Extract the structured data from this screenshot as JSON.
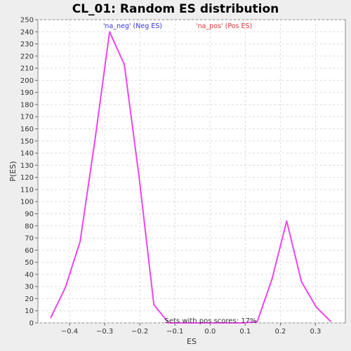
{
  "chart_data": {
    "type": "line",
    "title": "CL_01: Random ES distribution",
    "xlabel": "ES",
    "ylabel": "P(ES)",
    "xlim": [
      -0.49,
      0.385
    ],
    "ylim": [
      0,
      250
    ],
    "x_ticks": [
      -0.4,
      -0.3,
      -0.2,
      -0.1,
      0.0,
      0.1,
      0.2,
      0.3
    ],
    "x_tick_labels": [
      "−0.4",
      "−0.3",
      "−0.2",
      "−0.1",
      "0.0",
      "0.1",
      "0.2",
      "0.3"
    ],
    "y_ticks": [
      0,
      10,
      20,
      30,
      40,
      50,
      60,
      70,
      80,
      90,
      100,
      110,
      120,
      130,
      140,
      150,
      160,
      170,
      180,
      190,
      200,
      210,
      220,
      230,
      240,
      250
    ],
    "grid": true,
    "legend_position": "top-center",
    "series": [
      {
        "name": "'na_neg' (Neg ES)",
        "color": "#3333dd",
        "x": [],
        "y": []
      },
      {
        "name": "'na_pos' (Pos ES)",
        "color": "#dd3333",
        "line_color": "#ee44ee",
        "x": [
          -0.454,
          -0.412,
          -0.37,
          -0.328,
          -0.286,
          -0.244,
          -0.202,
          -0.16,
          -0.118,
          -0.076,
          -0.034,
          0.008,
          0.05,
          0.092,
          0.134,
          0.176,
          0.218,
          0.26,
          0.302,
          0.344
        ],
        "y": [
          4,
          29,
          67,
          150,
          240,
          213,
          120,
          15,
          0,
          0,
          0,
          0,
          0,
          0,
          1,
          36,
          84,
          34,
          13,
          1
        ]
      }
    ],
    "annotations": [
      "Sets with pos scores: 17%"
    ]
  }
}
